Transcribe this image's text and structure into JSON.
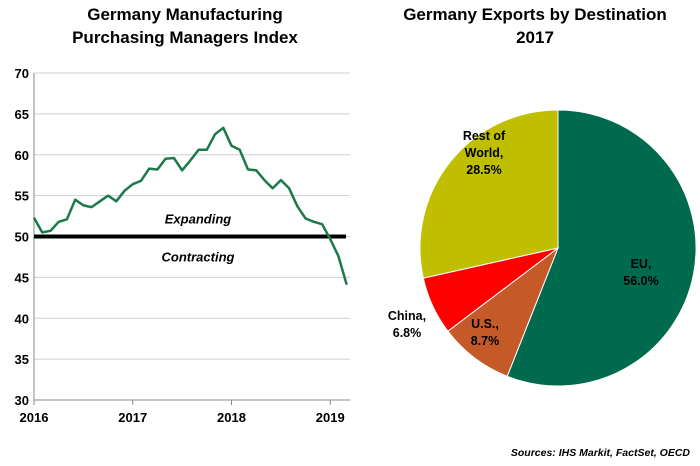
{
  "titles": {
    "left_line1": "Germany Manufacturing",
    "left_line2": "Purchasing Managers Index",
    "right_line1": "Germany Exports by Destination",
    "right_line2": "2017"
  },
  "source": "Sources: IHS Markit, FactSet, OECD",
  "colors": {
    "pmi_line": "#1a7a4a",
    "threshold": "#000000",
    "grid": "#d0d0d0",
    "eu": "#006a4e",
    "us": "#c55a28",
    "china": "#ff0000",
    "rest": "#bfbf00"
  },
  "chart_data": [
    {
      "type": "line",
      "title": "Germany Manufacturing Purchasing Managers Index",
      "ylim": [
        30,
        70
      ],
      "yticks": [
        "30",
        "35",
        "40",
        "45",
        "50",
        "55",
        "60",
        "65",
        "70"
      ],
      "xticks": [
        "2016",
        "2017",
        "2018",
        "2019"
      ],
      "grid": "horizontal",
      "series": [
        {
          "x": [
            2016.0,
            2016.083,
            2016.167,
            2016.25,
            2016.333,
            2016.417,
            2016.5,
            2016.583,
            2016.667,
            2016.75,
            2016.833,
            2016.917,
            2017.0,
            2017.083,
            2017.167,
            2017.25,
            2017.333,
            2017.417,
            2017.5,
            2017.583,
            2017.667,
            2017.75,
            2017.833,
            2017.917,
            2018.0,
            2018.083,
            2018.167,
            2018.25,
            2018.333,
            2018.417,
            2018.5,
            2018.583,
            2018.667,
            2018.75,
            2018.833,
            2018.917,
            2019.0,
            2019.083,
            2019.167
          ],
          "values": [
            52.3,
            50.5,
            50.7,
            51.8,
            52.1,
            54.5,
            53.8,
            53.6,
            54.3,
            55.0,
            54.3,
            55.6,
            56.4,
            56.8,
            58.3,
            58.2,
            59.5,
            59.6,
            58.1,
            59.3,
            60.6,
            60.6,
            62.5,
            63.3,
            61.1,
            60.6,
            58.2,
            58.1,
            56.9,
            55.9,
            56.9,
            55.9,
            53.7,
            52.2,
            51.8,
            51.5,
            49.7,
            47.6,
            44.1
          ]
        }
      ],
      "threshold": 50,
      "annotations": {
        "above": "Expanding",
        "below": "Contracting"
      }
    },
    {
      "type": "pie",
      "title": "Germany Exports by Destination 2017",
      "slices": [
        {
          "label_line1": "EU,",
          "label_line2": "56.0%",
          "value": 56.0,
          "color": "#006a4e"
        },
        {
          "label_line1": "U.S.,",
          "label_line2": "8.7%",
          "value": 8.7,
          "color": "#c55a28"
        },
        {
          "label_line1": "China,",
          "label_line2": "6.8%",
          "value": 6.8,
          "color": "#ff0000"
        },
        {
          "label_line1": "Rest of",
          "label_line2": "World,",
          "label_line3": "28.5%",
          "value": 28.5,
          "color": "#bfbf00"
        }
      ]
    }
  ]
}
